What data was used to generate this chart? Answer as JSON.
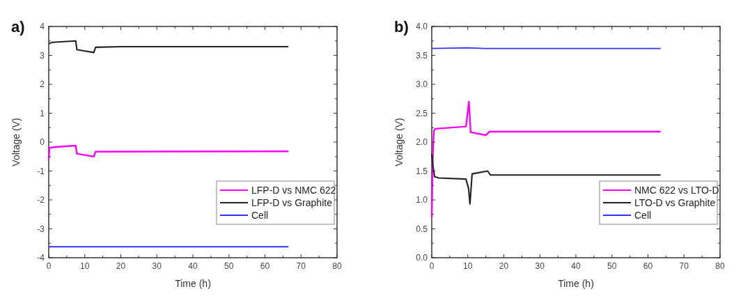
{
  "chart_data": [
    {
      "type": "line",
      "title": "a)",
      "xlabel": "Time (h)",
      "ylabel": "Voltage (V)",
      "xlim": [
        0,
        80
      ],
      "ylim": [
        -4,
        4
      ],
      "xticks": [
        0,
        {
          "value": 5,
          "label": null
        },
        10,
        {
          "value": 15,
          "label": null
        },
        20,
        {
          "value": 25,
          "label": null
        },
        30,
        {
          "value": 35,
          "label": null
        },
        40,
        {
          "value": 45,
          "label": null
        },
        50,
        {
          "value": 55,
          "label": null
        },
        60,
        {
          "value": 65,
          "label": null
        },
        70,
        {
          "value": 75,
          "label": null
        },
        80
      ],
      "yticks": [
        -4,
        {
          "value": -3.5,
          "label": null
        },
        -3,
        {
          "value": -2.5,
          "label": null
        },
        -2,
        {
          "value": -1.5,
          "label": null
        },
        -1,
        {
          "value": -0.5,
          "label": null
        },
        0,
        {
          "value": 0.5,
          "label": null
        },
        1,
        {
          "value": 1.5,
          "label": null
        },
        2,
        {
          "value": 2.5,
          "label": null
        },
        3,
        {
          "value": 3.5,
          "label": null
        },
        4
      ],
      "legend": "bottom right",
      "grid": false,
      "series": [
        {
          "name": "LFP-D vs NMC 622",
          "color": "#ff00ff",
          "x": [
            0,
            0.2,
            2,
            7.5,
            7.8,
            10,
            12.5,
            13,
            66.5
          ],
          "values": [
            -0.6,
            -0.2,
            -0.17,
            -0.12,
            -0.4,
            -0.45,
            -0.5,
            -0.33,
            -0.32
          ]
        },
        {
          "name": "LFP-D vs Graphite",
          "color": "#222222",
          "x": [
            0,
            1,
            7.5,
            7.8,
            10,
            12.5,
            13,
            20,
            66.5
          ],
          "values": [
            3.4,
            3.45,
            3.5,
            3.2,
            3.15,
            3.1,
            3.28,
            3.3,
            3.3
          ]
        },
        {
          "name": "Cell",
          "color": "#3333ff",
          "x": [
            0,
            66.5
          ],
          "values": [
            -3.62,
            -3.62
          ]
        }
      ]
    },
    {
      "type": "line",
      "title": "b)",
      "xlabel": "Time (h)",
      "ylabel": "Voltage (V)",
      "xlim": [
        0,
        80
      ],
      "ylim": [
        0,
        4
      ],
      "xticks": [
        0,
        {
          "value": 5,
          "label": null
        },
        10,
        {
          "value": 15,
          "label": null
        },
        20,
        {
          "value": 25,
          "label": null
        },
        30,
        {
          "value": 35,
          "label": null
        },
        40,
        {
          "value": 45,
          "label": null
        },
        50,
        {
          "value": 55,
          "label": null
        },
        60,
        {
          "value": 65,
          "label": null
        },
        70,
        {
          "value": 75,
          "label": null
        },
        80
      ],
      "yticks": [
        {
          "value": 0,
          "label": "0.0"
        },
        {
          "value": 0.25,
          "label": null
        },
        0.5,
        {
          "value": 0.75,
          "label": null
        },
        {
          "value": 1,
          "label": "1.0"
        },
        {
          "value": 1.25,
          "label": null
        },
        1.5,
        {
          "value": 1.75,
          "label": null
        },
        {
          "value": 2,
          "label": "2.0"
        },
        {
          "value": 2.25,
          "label": null
        },
        2.5,
        {
          "value": 2.75,
          "label": null
        },
        {
          "value": 3,
          "label": "3.0"
        },
        {
          "value": 3.25,
          "label": null
        },
        3.5,
        {
          "value": 3.75,
          "label": null
        },
        {
          "value": 4,
          "label": "4.0"
        }
      ],
      "legend": "bottom right",
      "grid": false,
      "series": [
        {
          "name": "NMC 622 vs LTO-D",
          "color": "#ff00ff",
          "x": [
            0,
            0.3,
            0.6,
            1,
            9.5,
            10.3,
            10.8,
            15,
            16,
            63.5
          ],
          "values": [
            0.7,
            1.8,
            2.2,
            2.23,
            2.27,
            2.7,
            2.17,
            2.12,
            2.18,
            2.18
          ]
        },
        {
          "name": "LTO-D vs Graphite",
          "color": "#222222",
          "x": [
            0,
            0.3,
            0.8,
            2,
            9.5,
            10.2,
            10.6,
            11.2,
            15.5,
            16.3,
            63.5
          ],
          "values": [
            1.8,
            1.6,
            1.4,
            1.38,
            1.36,
            1.2,
            0.93,
            1.45,
            1.5,
            1.43,
            1.43
          ]
        },
        {
          "name": "Cell",
          "color": "#3333ff",
          "x": [
            0,
            10,
            15,
            63.5
          ],
          "values": [
            3.62,
            3.63,
            3.62,
            3.62
          ]
        }
      ]
    }
  ]
}
